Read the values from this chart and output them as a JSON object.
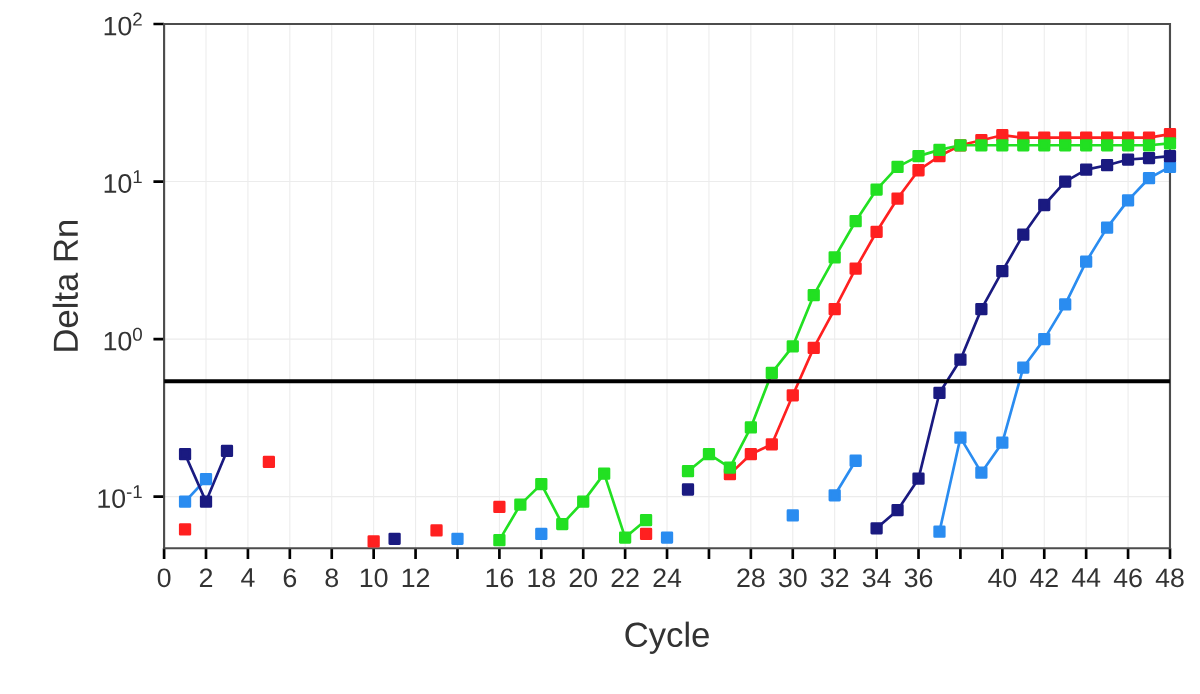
{
  "chart_data": {
    "type": "line",
    "xlabel": "Cycle",
    "ylabel": "Delta Rn",
    "x": [
      1,
      2,
      3,
      4,
      5,
      6,
      7,
      8,
      9,
      10,
      11,
      12,
      13,
      14,
      15,
      16,
      17,
      18,
      19,
      20,
      21,
      22,
      23,
      24,
      25,
      26,
      27,
      28,
      29,
      30,
      31,
      32,
      33,
      34,
      35,
      36,
      37,
      38,
      39,
      40,
      41,
      42,
      43,
      44,
      45,
      46,
      47,
      48
    ],
    "series": [
      {
        "color": "#2a8cf0",
        "values": [
          0.093,
          0.129,
          null,
          null,
          null,
          null,
          null,
          null,
          null,
          null,
          null,
          null,
          null,
          0.054,
          null,
          null,
          null,
          0.058,
          null,
          null,
          null,
          null,
          null,
          0.055,
          null,
          null,
          null,
          null,
          null,
          0.076,
          null,
          0.102,
          0.169,
          null,
          null,
          null,
          0.06,
          0.237,
          0.142,
          0.22,
          0.66,
          1.0,
          1.66,
          3.1,
          5.1,
          7.6,
          10.5,
          12.4
        ]
      },
      {
        "color": "#1a1a80",
        "values": [
          0.186,
          0.093,
          0.195,
          null,
          null,
          null,
          null,
          null,
          null,
          null,
          0.054,
          null,
          null,
          null,
          null,
          null,
          null,
          null,
          null,
          null,
          null,
          null,
          null,
          null,
          0.111,
          null,
          null,
          null,
          null,
          null,
          null,
          null,
          null,
          0.063,
          0.082,
          0.13,
          0.455,
          0.74,
          1.55,
          2.7,
          4.6,
          7.1,
          10,
          11.9,
          12.7,
          13.8,
          14.1,
          14.5
        ]
      },
      {
        "color": "#ff2020",
        "values": [
          0.062,
          null,
          null,
          null,
          0.166,
          null,
          null,
          null,
          null,
          0.052,
          null,
          null,
          0.061,
          null,
          null,
          0.086,
          null,
          null,
          null,
          null,
          null,
          null,
          0.058,
          null,
          null,
          null,
          0.139,
          0.186,
          0.215,
          0.44,
          0.88,
          1.55,
          2.8,
          4.8,
          7.8,
          11.8,
          14.5,
          17,
          18.3,
          19.7,
          19,
          19,
          19,
          19,
          19,
          19,
          19,
          20
        ]
      },
      {
        "color": "#22e022",
        "values": [
          null,
          null,
          null,
          null,
          null,
          null,
          null,
          null,
          null,
          null,
          null,
          null,
          null,
          null,
          null,
          0.053,
          0.089,
          0.12,
          0.067,
          0.093,
          0.14,
          0.055,
          0.071,
          null,
          0.145,
          0.186,
          0.153,
          0.275,
          0.61,
          0.9,
          1.9,
          3.3,
          5.6,
          8.9,
          12.4,
          14.5,
          15.9,
          17,
          17,
          17,
          17,
          17,
          17,
          17,
          17,
          17,
          17,
          17.5
        ]
      }
    ],
    "log": "y",
    "marker": "square",
    "line_style": "solid",
    "grid": true,
    "xlim": [
      0,
      48
    ],
    "ylim": [
      0.047,
      100
    ],
    "xticks": [
      0,
      2,
      4,
      6,
      8,
      10,
      12,
      {
        "value": 14,
        "label": null
      },
      16,
      18,
      20,
      22,
      24,
      {
        "value": 26,
        "label": null
      },
      28,
      30,
      32,
      34,
      36,
      {
        "value": 38,
        "label": null
      },
      40,
      42,
      44,
      46,
      48
    ],
    "yticks": [
      {
        "value": 0.1,
        "label": "10$^{-1}$"
      },
      {
        "value": 1,
        "label": "10$^{0}$"
      },
      {
        "value": 10,
        "label": "10$^{1}$"
      },
      {
        "value": 100,
        "label": "10$^{2}$"
      }
    ],
    "ref_lines": [
      {
        "axis": "y",
        "value": 0.54,
        "color": "#000000"
      }
    ]
  }
}
